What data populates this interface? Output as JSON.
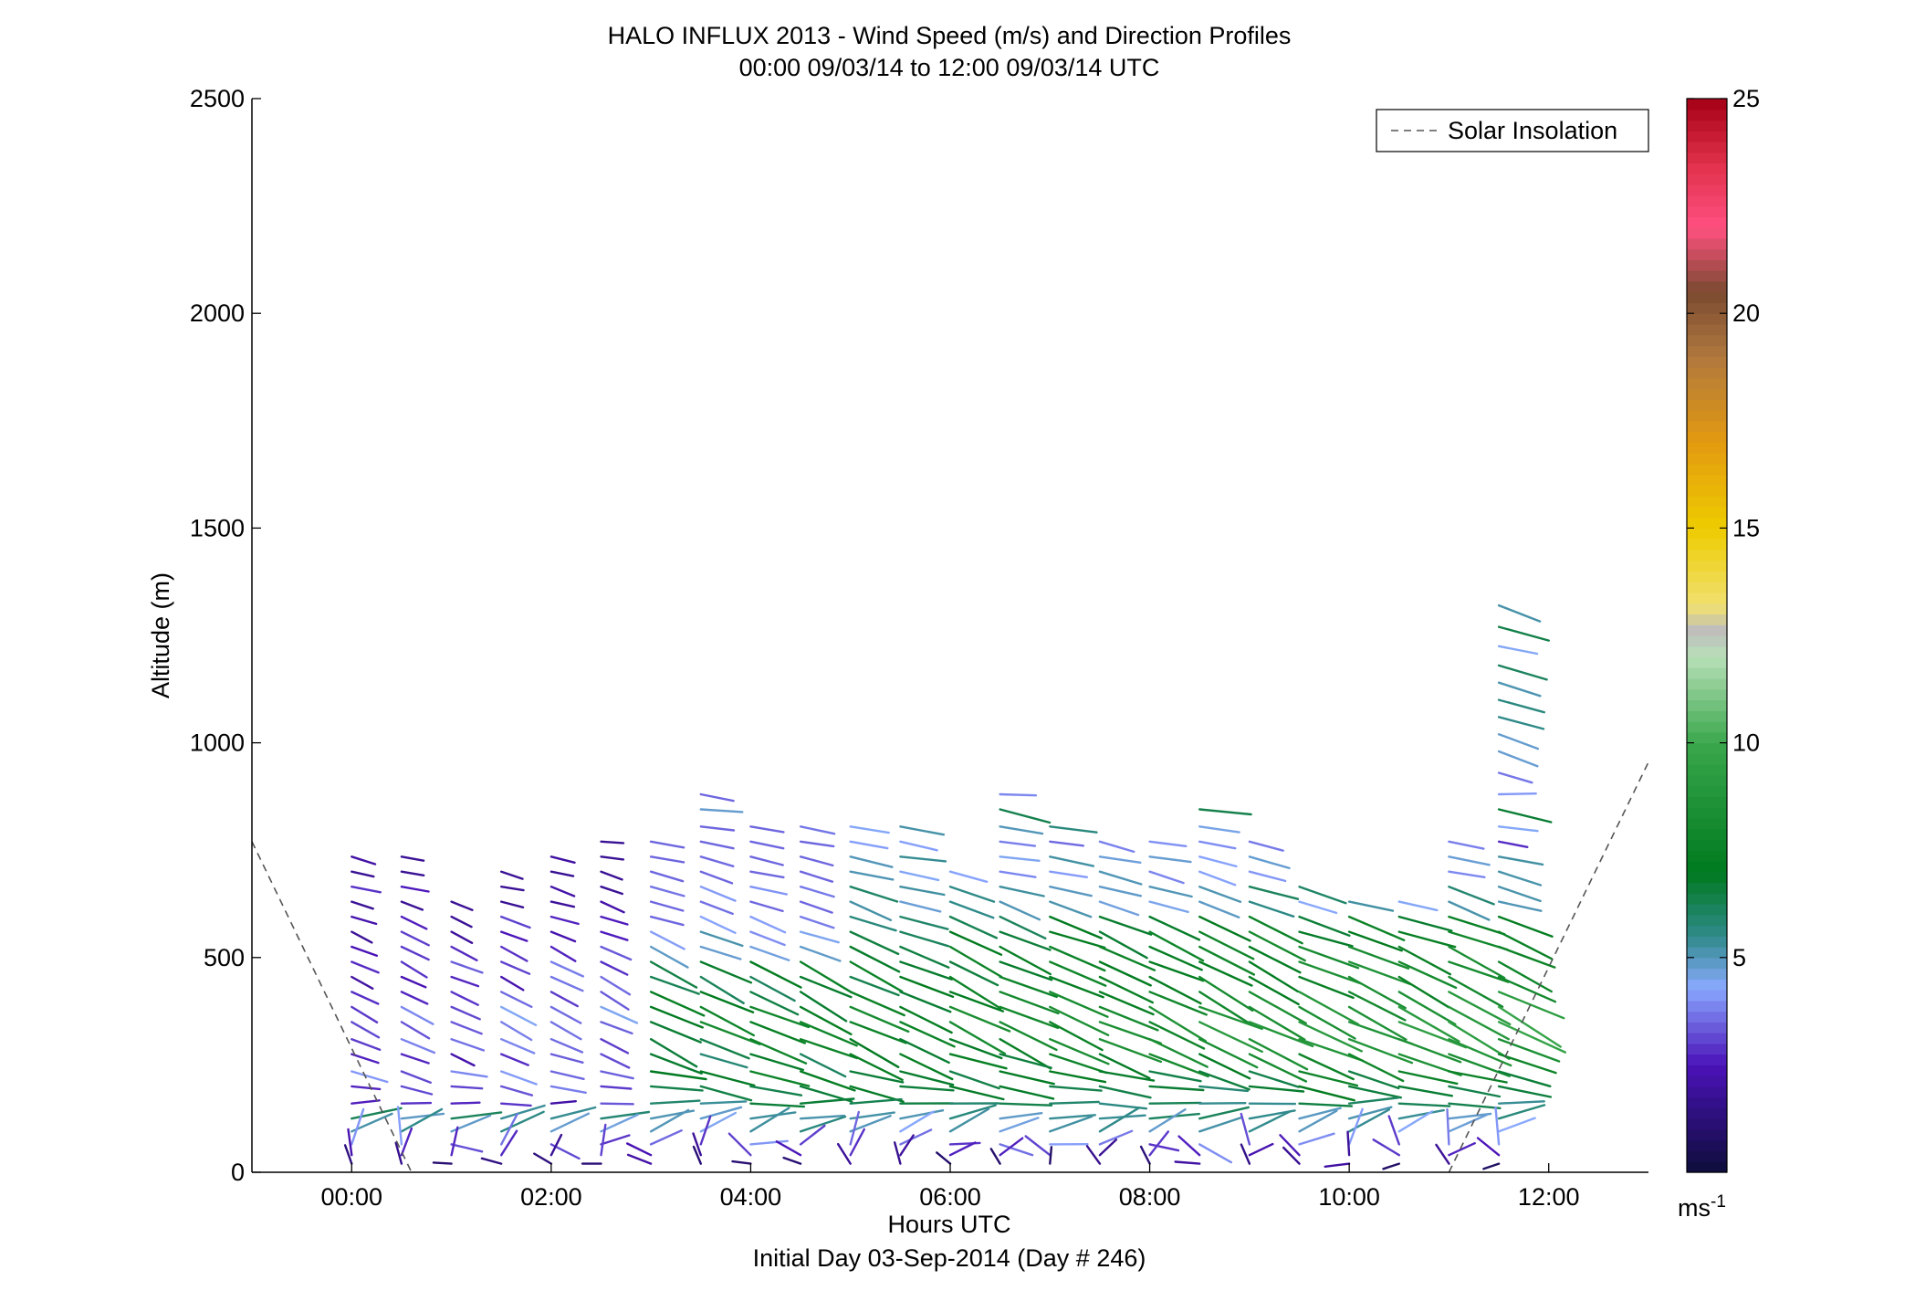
{
  "chart_data": {
    "type": "vector-field",
    "title": "HALO INFLUX 2013 - Wind Speed (m/s) and Direction Profiles",
    "subtitle": "00:00 09/03/14 to 12:00 09/03/14  UTC",
    "xlabel": "Hours UTC",
    "xlabel2": "Initial Day 03-Sep-2014 (Day # 246)",
    "ylabel": "Altitude (m)",
    "xlim": [
      -1,
      13
    ],
    "ylim": [
      0,
      2500
    ],
    "xticks": [
      {
        "value": 0,
        "label": "00:00"
      },
      {
        "value": 2,
        "label": "02:00"
      },
      {
        "value": 4,
        "label": "04:00"
      },
      {
        "value": 6,
        "label": "06:00"
      },
      {
        "value": 8,
        "label": "08:00"
      },
      {
        "value": 10,
        "label": "10:00"
      },
      {
        "value": 12,
        "label": "12:00"
      }
    ],
    "yticks": [
      {
        "value": 0,
        "label": "0"
      },
      {
        "value": 500,
        "label": "500"
      },
      {
        "value": 1000,
        "label": "1000"
      },
      {
        "value": 1500,
        "label": "1500"
      },
      {
        "value": 2000,
        "label": "2000"
      },
      {
        "value": 2500,
        "label": "2500"
      }
    ],
    "legend": {
      "label": "Solar Insolation",
      "placement": "top-right"
    },
    "colorbar": {
      "range": [
        0,
        25
      ],
      "ticks": [
        {
          "value": 5,
          "label": "5"
        },
        {
          "value": 10,
          "label": "10"
        },
        {
          "value": 15,
          "label": "15"
        },
        {
          "value": 20,
          "label": "20"
        },
        {
          "value": 25,
          "label": "25"
        }
      ],
      "unit_base": "ms",
      "unit_sup": "-1",
      "stops": [
        {
          "v": 0,
          "c": "#0d0d3a"
        },
        {
          "v": 2.5,
          "c": "#4b12b8"
        },
        {
          "v": 4.3,
          "c": "#8aa9ff"
        },
        {
          "v": 5.5,
          "c": "#2f8a8a"
        },
        {
          "v": 7,
          "c": "#007a1e"
        },
        {
          "v": 10,
          "c": "#3aa74c"
        },
        {
          "v": 12,
          "c": "#b8e0b8"
        },
        {
          "v": 12.6,
          "c": "#bdbdbd"
        },
        {
          "v": 13.2,
          "c": "#f0e070"
        },
        {
          "v": 15,
          "c": "#eecc00"
        },
        {
          "v": 17,
          "c": "#e39a10"
        },
        {
          "v": 19,
          "c": "#b0783e"
        },
        {
          "v": 20.5,
          "c": "#7a4a30"
        },
        {
          "v": 22,
          "c": "#ff5080"
        },
        {
          "v": 23.5,
          "c": "#e0304a"
        },
        {
          "v": 25,
          "c": "#a50016"
        }
      ]
    },
    "solar_insolation": [
      {
        "x": [
          -1.0,
          0.6
        ],
        "y": [
          770,
          0
        ]
      },
      {
        "x": [
          11.0,
          13.0
        ],
        "y": [
          0,
          955
        ]
      }
    ],
    "profile_times": [
      0,
      0.5,
      1,
      1.5,
      2,
      2.5,
      3,
      3.5,
      4,
      4.5,
      5,
      5.5,
      6,
      6.5,
      7,
      7.5,
      8,
      8.5,
      9,
      9.5,
      10,
      10.5,
      11,
      11.5
    ],
    "profile_tops": [
      760,
      740,
      640,
      710,
      740,
      780,
      770,
      920,
      810,
      815,
      810,
      810,
      710,
      910,
      810,
      780,
      780,
      850,
      800,
      690,
      660,
      660,
      800,
      1330
    ],
    "wind_layers": [
      {
        "z": 1320,
        "speed": 4.5,
        "dir": 290
      },
      {
        "z": 1270,
        "speed": 7.0,
        "dir": 290
      },
      {
        "z": 1225,
        "speed": 5.0,
        "dir": 285
      },
      {
        "z": 1180,
        "speed": 5.5,
        "dir": 285
      },
      {
        "z": 1140,
        "speed": 5.0,
        "dir": 285
      },
      {
        "z": 1100,
        "speed": 5.5,
        "dir": 285
      },
      {
        "z": 1060,
        "speed": 5.0,
        "dir": 285
      },
      {
        "z": 1020,
        "speed": 4.8,
        "dir": 285
      },
      {
        "z": 980,
        "speed": 4.5,
        "dir": 285
      },
      {
        "z": 930,
        "speed": 4.2,
        "dir": 285
      },
      {
        "z": 880,
        "speed": 4.5,
        "dir": 275
      },
      {
        "z": 845,
        "speed": 6.5,
        "dir": 280
      },
      {
        "z": 805,
        "speed": 5.0,
        "dir": 280
      },
      {
        "z": 770,
        "speed": 3.5,
        "dir": 280
      },
      {
        "z": 735,
        "speed": 4.8,
        "dir": 282
      },
      {
        "z": 700,
        "speed": 4.5,
        "dir": 284
      },
      {
        "z": 665,
        "speed": 5.5,
        "dir": 286
      },
      {
        "z": 630,
        "speed": 5.0,
        "dir": 288
      },
      {
        "z": 595,
        "speed": 6.5,
        "dir": 290
      },
      {
        "z": 560,
        "speed": 6.8,
        "dir": 292
      },
      {
        "z": 525,
        "speed": 7.0,
        "dir": 294
      },
      {
        "z": 490,
        "speed": 7.2,
        "dir": 295
      },
      {
        "z": 455,
        "speed": 7.0,
        "dir": 296
      },
      {
        "z": 420,
        "speed": 7.5,
        "dir": 297
      },
      {
        "z": 385,
        "speed": 8.0,
        "dir": 296
      },
      {
        "z": 350,
        "speed": 8.0,
        "dir": 295
      },
      {
        "z": 310,
        "speed": 7.5,
        "dir": 295
      },
      {
        "z": 275,
        "speed": 7.0,
        "dir": 290
      },
      {
        "z": 235,
        "speed": 7.0,
        "dir": 285
      },
      {
        "z": 200,
        "speed": 6.5,
        "dir": 280
      },
      {
        "z": 160,
        "speed": 6.0,
        "dir": 270
      },
      {
        "z": 125,
        "speed": 5.5,
        "dir": 260
      },
      {
        "z": 95,
        "speed": 5.0,
        "dir": 245
      },
      {
        "z": 65,
        "speed": 3.5,
        "dir": 230
      },
      {
        "z": 40,
        "speed": 2.5,
        "dir": 180
      },
      {
        "z": 20,
        "speed": 1.5,
        "dir": 120
      }
    ]
  }
}
